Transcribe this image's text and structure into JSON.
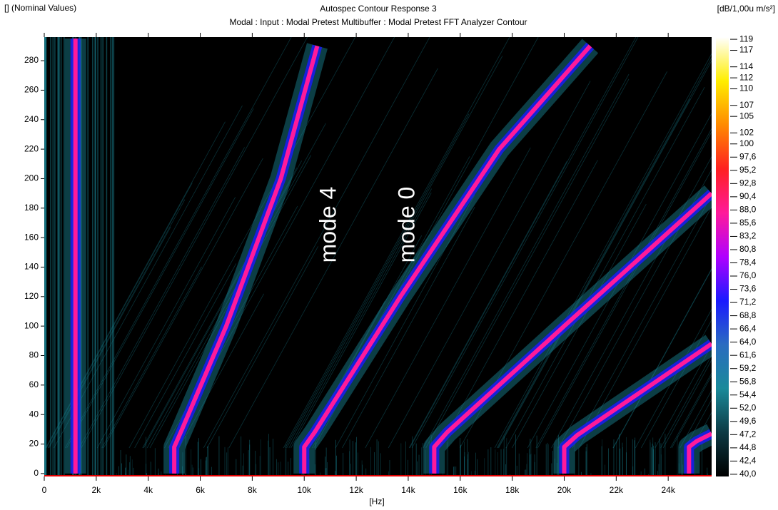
{
  "chart_data": {
    "type": "contour",
    "header_left": "[] (Nominal Values)",
    "title": "Autospec Contour Response 3",
    "subtitle": "Modal : Input : Modal Pretest Multibuffer : Modal Pretest FFT Analyzer Contour",
    "unit": "[dB/1,00u m/s²]",
    "x_label": "[Hz]",
    "xlim": [
      0,
      25670
    ],
    "ylim": [
      -2,
      296
    ],
    "xticks": [
      0,
      {
        "value": 2000,
        "label": "2k"
      },
      {
        "value": 4000,
        "label": "4k"
      },
      {
        "value": 6000,
        "label": "6k"
      },
      {
        "value": 8000,
        "label": "8k"
      },
      {
        "value": 10000,
        "label": "10k"
      },
      {
        "value": 12000,
        "label": "12k"
      },
      {
        "value": 14000,
        "label": "14k"
      },
      {
        "value": 16000,
        "label": "16k"
      },
      {
        "value": 18000,
        "label": "18k"
      },
      {
        "value": 20000,
        "label": "20k"
      },
      {
        "value": 22000,
        "label": "22k"
      },
      {
        "value": 24000,
        "label": "24k"
      }
    ],
    "yticks": [
      0,
      20,
      40,
      60,
      80,
      100,
      120,
      140,
      160,
      180,
      200,
      220,
      240,
      260,
      280
    ],
    "clim": [
      39.6,
      119.4
    ],
    "cticks": [
      119,
      117,
      114,
      112,
      110,
      107,
      105,
      102,
      100,
      {
        "value": 97.6,
        "label": "97,6"
      },
      {
        "value": 95.2,
        "label": "95,2"
      },
      {
        "value": 92.8,
        "label": "92,8"
      },
      {
        "value": 90.4,
        "label": "90,4"
      },
      {
        "value": 88.0,
        "label": "88,0"
      },
      {
        "value": 85.6,
        "label": "85,6"
      },
      {
        "value": 83.2,
        "label": "83,2"
      },
      {
        "value": 80.8,
        "label": "80,8"
      },
      {
        "value": 78.4,
        "label": "78,4"
      },
      {
        "value": 76.0,
        "label": "76,0"
      },
      {
        "value": 73.6,
        "label": "73,6"
      },
      {
        "value": 71.2,
        "label": "71,2"
      },
      {
        "value": 68.8,
        "label": "68,8"
      },
      {
        "value": 66.4,
        "label": "66,4"
      },
      {
        "value": 64.0,
        "label": "64,0"
      },
      {
        "value": 61.6,
        "label": "61,6"
      },
      {
        "value": 59.2,
        "label": "59,2"
      },
      {
        "value": 56.8,
        "label": "56,8"
      },
      {
        "value": 54.4,
        "label": "54,4"
      },
      {
        "value": 52.0,
        "label": "52,0"
      },
      {
        "value": 49.6,
        "label": "49,6"
      },
      {
        "value": 47.2,
        "label": "47,2"
      },
      {
        "value": 44.8,
        "label": "44,8"
      },
      {
        "value": 42.4,
        "label": "42,4"
      },
      {
        "value": 40.0,
        "label": "40,0"
      }
    ],
    "colormap": [
      "#000000",
      "#0d3a44",
      "#1a8a9a",
      "#2a6cc0",
      "#1a1aff",
      "#b000ff",
      "#ff1a9a",
      "#ff2020",
      "#ff8a00",
      "#ffee00",
      "#ffffff"
    ],
    "background": "#000000",
    "series": [
      {
        "color": "#ff1a9a",
        "x": [
          1200,
          1200
        ],
        "values": [
          0,
          295
        ]
      },
      {
        "color": "#ff1a9a",
        "x": [
          5000,
          5000,
          5300,
          7000,
          9100,
          10500
        ],
        "values": [
          0,
          18,
          30,
          100,
          200,
          290
        ]
      },
      {
        "color": "#ff1a9a",
        "x": [
          10000,
          10000,
          10400,
          13700,
          17500,
          21000
        ],
        "values": [
          0,
          18,
          28,
          120,
          220,
          290
        ]
      },
      {
        "color": "#ff1a9a",
        "x": [
          15000,
          15000,
          15500,
          20000,
          25670
        ],
        "values": [
          0,
          18,
          28,
          100,
          190
        ]
      },
      {
        "color": "#ff1a9a",
        "x": [
          20000,
          20000,
          20500,
          25670
        ],
        "values": [
          0,
          18,
          26,
          88
        ]
      },
      {
        "color": "#ff1a9a",
        "x": [
          24800,
          24800,
          25100,
          25670
        ],
        "values": [
          0,
          18,
          22,
          27
        ]
      }
    ],
    "annotations": [
      "mode 4",
      "mode 0"
    ]
  }
}
